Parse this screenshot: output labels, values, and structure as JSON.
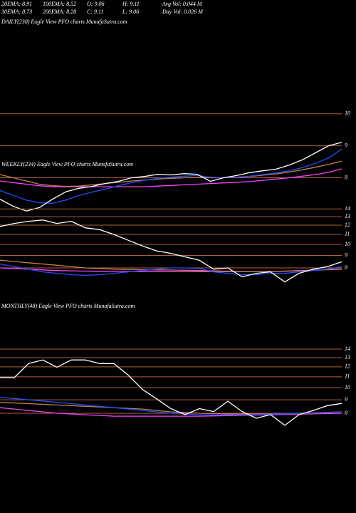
{
  "header": {
    "rows": [
      [
        "20EMA: 8.91",
        "100EMA: 8.52",
        "O: 9.06",
        "H: 9.11",
        "Avg Vol: 0.044 M"
      ],
      [
        "30EMA: 8.73",
        "200EMA: 8.28",
        "C: 9.11",
        "L: 9.06",
        "Day Vol: 0.026 M"
      ]
    ]
  },
  "chart_data": [
    {
      "type": "line",
      "title": "DAILY(230) Eagle  View  PFO charts MunafaSutra.com",
      "log": false,
      "grid": true,
      "ylim": [
        6.92,
        12.78
      ],
      "yticks": [
        10,
        9,
        8
      ],
      "series": [
        {
          "name": null,
          "color": "#ff40ff",
          "values": [
            7.9,
            7.85,
            7.8,
            7.75,
            7.72,
            7.72,
            7.72,
            7.72,
            7.72,
            7.72,
            7.72,
            7.72,
            7.74,
            7.76,
            7.78,
            7.8,
            7.82,
            7.84,
            7.86,
            7.88,
            7.92,
            7.96,
            8.0,
            8.05,
            8.1,
            8.17,
            8.28
          ]
        },
        {
          "name": null,
          "color": "#c08050",
          "values": [
            8.1,
            8.0,
            7.9,
            7.8,
            7.75,
            7.73,
            7.74,
            7.78,
            7.82,
            7.86,
            7.9,
            7.93,
            7.96,
            7.98,
            8.0,
            8.01,
            8.0,
            8.0,
            8.02,
            8.04,
            8.08,
            8.12,
            8.18,
            8.25,
            8.33,
            8.42,
            8.52
          ]
        },
        {
          "name": null,
          "color": "#2050ff",
          "values": [
            7.6,
            7.45,
            7.3,
            7.22,
            7.2,
            7.3,
            7.45,
            7.55,
            7.65,
            7.75,
            7.85,
            7.92,
            7.98,
            8.02,
            8.05,
            8.07,
            8.02,
            8.0,
            8.02,
            8.05,
            8.1,
            8.15,
            8.22,
            8.32,
            8.45,
            8.62,
            8.9
          ]
        },
        {
          "name": null,
          "color": "#ffffff",
          "values": [
            7.33,
            7.11,
            6.96,
            7.07,
            7.33,
            7.56,
            7.67,
            7.73,
            7.82,
            7.89,
            8.0,
            8.04,
            8.11,
            8.09,
            8.13,
            8.11,
            7.89,
            8.0,
            8.07,
            8.16,
            8.22,
            8.27,
            8.4,
            8.56,
            8.78,
            9.0,
            9.11
          ]
        }
      ]
    },
    {
      "type": "line",
      "title": "WEEKLY(234) Eagle  View  PFO charts MunafaSutra.com",
      "log": true,
      "grid": true,
      "ylim": [
        6.8,
        14.8
      ],
      "yticks": [
        14,
        13,
        12,
        11,
        10,
        9,
        8
      ],
      "series": [
        {
          "name": null,
          "color": "#ff40ff",
          "values": [
            8.0,
            7.95,
            7.9,
            7.85,
            7.8,
            7.78,
            7.76,
            7.75,
            7.74,
            7.73,
            7.72,
            7.72,
            7.72,
            7.72,
            7.72,
            7.72,
            7.72,
            7.72,
            7.72,
            7.74,
            7.76,
            7.8,
            7.84,
            7.88,
            7.92
          ]
        },
        {
          "name": null,
          "color": "#c08050",
          "values": [
            8.6,
            8.5,
            8.4,
            8.3,
            8.2,
            8.1,
            8.0,
            7.95,
            7.9,
            7.88,
            7.86,
            7.85,
            7.84,
            7.82,
            7.8,
            7.78,
            7.75,
            7.72,
            7.72,
            7.74,
            7.75,
            7.78,
            7.82,
            7.86,
            7.9
          ]
        },
        {
          "name": null,
          "color": "#2050ff",
          "values": [
            8.3,
            8.1,
            7.9,
            7.7,
            7.6,
            7.5,
            7.45,
            7.5,
            7.6,
            7.7,
            7.8,
            7.9,
            8.0,
            8.0,
            7.95,
            7.7,
            7.6,
            7.5,
            7.5,
            7.6,
            7.6,
            7.7,
            7.8,
            7.9,
            8.1
          ]
        },
        {
          "name": null,
          "color": "#ffffff",
          "values": [
            11.85,
            12.2,
            12.45,
            12.6,
            12.2,
            12.45,
            11.7,
            11.5,
            10.98,
            10.4,
            9.86,
            9.4,
            9.18,
            8.88,
            8.6,
            7.9,
            8.0,
            7.35,
            7.6,
            7.7,
            7.0,
            7.6,
            7.9,
            8.1,
            8.47
          ]
        }
      ]
    },
    {
      "type": "line",
      "title": "MONTHLY(48) Eagle  View  PFO charts MunafaSutra.com",
      "log": true,
      "grid": true,
      "ylim": [
        6.85,
        14.9
      ],
      "yticks": [
        14,
        13,
        12,
        11,
        10,
        9,
        8
      ],
      "series": [
        {
          "name": null,
          "color": "#ff40ff",
          "values": [
            8.4,
            8.3,
            8.2,
            8.1,
            8.0,
            7.95,
            7.9,
            7.85,
            7.8,
            7.8,
            7.8,
            7.8,
            7.8,
            7.8,
            7.8,
            7.82,
            7.84,
            7.86,
            7.88,
            7.9,
            7.92,
            7.94,
            7.96,
            7.98,
            8.0
          ]
        },
        {
          "name": null,
          "color": "#c08050",
          "values": [
            8.8,
            8.75,
            8.7,
            8.65,
            8.6,
            8.55,
            8.5,
            8.45,
            8.4,
            8.35,
            8.3,
            8.2,
            8.1,
            8.05,
            8.0,
            7.98,
            7.96,
            7.95,
            7.95,
            7.96,
            7.98,
            8.0,
            8.03,
            8.06,
            8.1
          ]
        },
        {
          "name": null,
          "color": "#2050ff",
          "values": [
            9.2,
            9.1,
            9.0,
            8.9,
            8.8,
            8.7,
            8.6,
            8.5,
            8.4,
            8.3,
            8.2,
            8.1,
            8.0,
            7.95,
            7.9,
            7.9,
            7.9,
            7.9,
            7.92,
            7.94,
            7.96,
            7.98,
            8.0,
            8.05,
            8.1
          ]
        },
        {
          "name": null,
          "color": "#ffffff",
          "values": [
            10.92,
            10.92,
            12.34,
            12.74,
            11.96,
            12.74,
            12.74,
            12.34,
            12.34,
            11.16,
            9.85,
            9.07,
            8.33,
            7.91,
            8.33,
            8.12,
            8.89,
            8.12,
            7.66,
            7.91,
            7.2,
            7.91,
            8.2,
            8.55,
            8.72
          ]
        }
      ]
    }
  ]
}
